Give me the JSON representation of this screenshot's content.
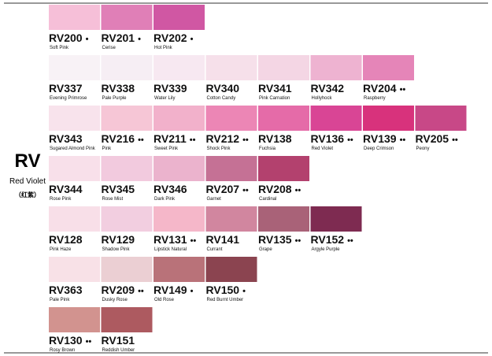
{
  "family": {
    "code": "RV",
    "name": "Red Violet",
    "native_name": "（红紫）"
  },
  "rows": [
    [
      {
        "code": "RV200",
        "marker": "•",
        "name": "Soft Pink",
        "color": "#f6bfd8"
      },
      {
        "code": "RV201",
        "marker": "•",
        "name": "Cerise",
        "color": "#e07fb7"
      },
      {
        "code": "RV202",
        "marker": "•",
        "name": "Hot Pink",
        "color": "#d057a3"
      }
    ],
    [
      {
        "code": "RV337",
        "name": "Evening Primrose",
        "color": "#f8f2f6"
      },
      {
        "code": "RV338",
        "name": "Pale Purple",
        "color": "#f6eef4"
      },
      {
        "code": "RV339",
        "name": "Water Lily",
        "color": "#f7e8f1"
      },
      {
        "code": "RV340",
        "name": "Cotton Candy",
        "color": "#f6e0ea"
      },
      {
        "code": "RV341",
        "name": "Pink Carnation",
        "color": "#f4d6e4"
      },
      {
        "code": "RV342",
        "name": "Hollyhock",
        "color": "#eeb3d1"
      },
      {
        "code": "RV204",
        "marker": "••",
        "name": "Raspberry",
        "color": "#e585b8"
      }
    ],
    [
      {
        "code": "RV343",
        "name": "Sugared Almond Pink",
        "color": "#f8e3ec"
      },
      {
        "code": "RV216",
        "marker": "••",
        "name": "Pink",
        "color": "#f6c6d6"
      },
      {
        "code": "RV211",
        "marker": "••",
        "name": "Sweet Pink",
        "color": "#f2b1cb"
      },
      {
        "code": "RV212",
        "marker": "••",
        "name": "Shock Pink",
        "color": "#ec86b5"
      },
      {
        "code": "RV138",
        "name": "Fuchsia",
        "color": "#e56ba8"
      },
      {
        "code": "RV136",
        "marker": "••",
        "name": "Red Violet",
        "color": "#d94595"
      },
      {
        "code": "RV139",
        "marker": "••",
        "name": "Deep Crimson",
        "color": "#d8327c"
      },
      {
        "code": "RV205",
        "marker": "••",
        "name": "Peony",
        "color": "#c84887"
      }
    ],
    [
      {
        "code": "RV344",
        "name": "Rose Pink",
        "color": "#f8e0ea"
      },
      {
        "code": "RV345",
        "name": "Rose Mist",
        "color": "#f2cade"
      },
      {
        "code": "RV346",
        "name": "Dark Pink",
        "color": "#ebb3cd"
      },
      {
        "code": "RV207",
        "marker": "••",
        "name": "Garnet",
        "color": "#c57195"
      },
      {
        "code": "RV208",
        "marker": "••",
        "name": "Cardinal",
        "color": "#b3416e"
      }
    ],
    [
      {
        "code": "RV128",
        "name": "Pink Haze",
        "color": "#f8dfe8"
      },
      {
        "code": "RV129",
        "name": "Shadow Pink",
        "color": "#f2cee0"
      },
      {
        "code": "RV131",
        "marker": "••",
        "name": "Lipstick Natural",
        "color": "#f5b7c9"
      },
      {
        "code": "RV141",
        "name": "Currant",
        "color": "#d1869f"
      },
      {
        "code": "RV135",
        "marker": "••",
        "name": "Grape",
        "color": "#a96278"
      },
      {
        "code": "RV152",
        "marker": "••",
        "name": "Argyle Purple",
        "color": "#7e2b51"
      }
    ],
    [
      {
        "code": "RV363",
        "name": "Pale Pink",
        "color": "#f8e1e7"
      },
      {
        "code": "RV209",
        "marker": "••",
        "name": "Dusky Rose",
        "color": "#ebcfd3"
      },
      {
        "code": "RV149",
        "marker": "•",
        "name": "Old Rose",
        "color": "#b97279"
      },
      {
        "code": "RV150",
        "marker": "•",
        "name": "Red Burnt Umber",
        "color": "#8b4450"
      }
    ],
    [
      {
        "code": "RV130",
        "marker": "••",
        "name": "Rosy Brown",
        "color": "#d2938f"
      },
      {
        "code": "RV151",
        "name": "Reddish Umber",
        "color": "#ad5a60"
      }
    ]
  ]
}
